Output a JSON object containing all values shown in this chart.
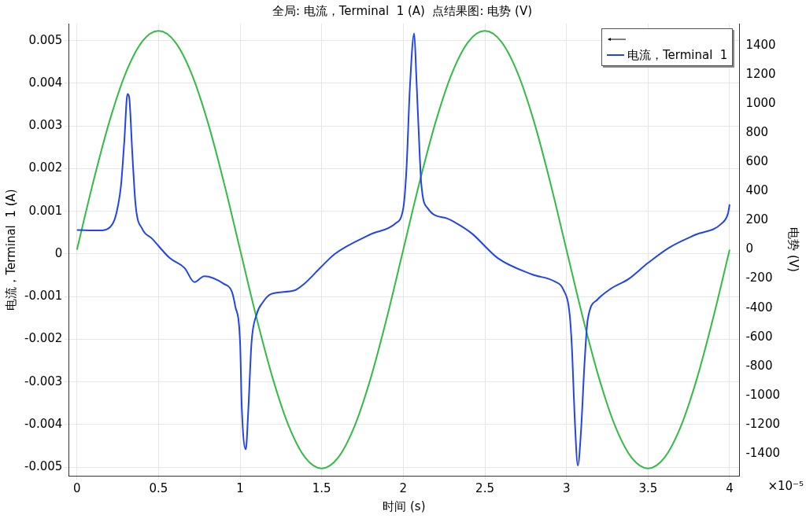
{
  "chart_data": {
    "type": "line",
    "title": "全局: 电流，Terminal  1 (A)  点结果图: 电势 (V)",
    "xlabel": "时间 (s)",
    "ylabel": "电流，Terminal  1 (A)",
    "y2label": "电势 (V)",
    "annotations": [
      "×10⁻⁵"
    ],
    "xlim": [
      -0.05,
      4.06
    ],
    "xticks": [
      0,
      0.5,
      1,
      1.5,
      2,
      2.5,
      3,
      3.5,
      4
    ],
    "ylim": [
      -0.0052,
      0.0054
    ],
    "yticks": [
      -0.005,
      -0.004,
      -0.003,
      -0.002,
      -0.001,
      0,
      0.001,
      0.002,
      0.003,
      0.004,
      0.005
    ],
    "y2lim": [
      -1550,
      1550
    ],
    "y2ticks": [
      -1400,
      -1200,
      -1000,
      -800,
      -600,
      -400,
      -200,
      0,
      200,
      400,
      600,
      800,
      1000,
      1200,
      1400
    ],
    "grid": true,
    "legend": "top right",
    "marker": "none",
    "line_style": "solid",
    "series": [
      {
        "axis": "y2",
        "color": "#33bb44",
        "x": [
          0,
          0.1,
          0.2,
          0.3,
          0.4,
          0.5,
          0.6,
          0.7,
          0.8,
          0.9,
          1,
          1.1,
          1.2,
          1.3,
          1.4,
          1.5,
          1.6,
          1.7,
          1.8,
          1.9,
          2,
          2.1,
          2.2,
          2.3,
          2.4,
          2.5,
          2.6,
          2.7,
          2.8,
          2.9,
          3,
          3.1,
          3.2,
          3.3,
          3.4,
          3.5,
          3.6,
          3.7,
          3.8,
          3.9,
          4
        ],
        "values": [
          0,
          464,
          882,
          1214,
          1427,
          1500,
          1427,
          1214,
          882,
          464,
          0,
          -464,
          -882,
          -1214,
          -1427,
          -1500,
          -1427,
          -1214,
          -882,
          -464,
          0,
          464,
          882,
          1214,
          1427,
          1500,
          1427,
          1214,
          882,
          464,
          0,
          -464,
          -882,
          -1214,
          -1427,
          -1500,
          -1427,
          -1214,
          -882,
          -464,
          0
        ]
      },
      {
        "axis": "y",
        "name": "电流，Terminal  1",
        "color": "#2244ee",
        "x": [
          0,
          0.14,
          0.19,
          0.23,
          0.25,
          0.27,
          0.29,
          0.31,
          0.32,
          0.34,
          0.36,
          0.4,
          0.46,
          0.57,
          0.66,
          0.72,
          0.78,
          0.9,
          0.95,
          0.97,
          1.0,
          1.01,
          1.035,
          1.05,
          1.07,
          1.1,
          1.14,
          1.19,
          1.33,
          1.39,
          1.49,
          1.58,
          1.8,
          1.95,
          2.0,
          2.02,
          2.04,
          2.067,
          2.08,
          2.1,
          2.11,
          2.15,
          2.27,
          2.33,
          2.42,
          2.58,
          2.79,
          2.93,
          2.98,
          3.02,
          3.035,
          3.05,
          3.07,
          3.09,
          3.11,
          3.13,
          3.19,
          3.27,
          3.38,
          3.5,
          3.63,
          3.79,
          3.95,
          3.99,
          4.0
        ],
        "values": [
          0.00056,
          0.00055,
          0.00059,
          0.0008,
          0.0011,
          0.0016,
          0.00262,
          0.00375,
          0.00368,
          0.00232,
          0.00113,
          0.00059,
          0.00036,
          -0.0001,
          -0.00033,
          -0.00066,
          -0.00052,
          -0.0007,
          -0.00089,
          -0.00122,
          -0.00208,
          -0.00357,
          -0.00458,
          -0.00368,
          -0.00208,
          -0.00143,
          -0.00113,
          -0.00094,
          -0.00086,
          -0.00071,
          -0.00033,
          0,
          0.00046,
          0.00071,
          0.00107,
          0.00202,
          0.00386,
          0.00517,
          0.00416,
          0.00238,
          0.00166,
          0.00107,
          0.00083,
          0.00071,
          0.00048,
          -0.0001,
          -0.00048,
          -0.00065,
          -0.00083,
          -0.00143,
          -0.00232,
          -0.0038,
          -0.00496,
          -0.0041,
          -0.00261,
          -0.00155,
          -0.00107,
          -0.00082,
          -0.00059,
          -0.00021,
          0.00015,
          0.00045,
          0.00071,
          0.00095,
          0.00116
        ]
      }
    ]
  }
}
